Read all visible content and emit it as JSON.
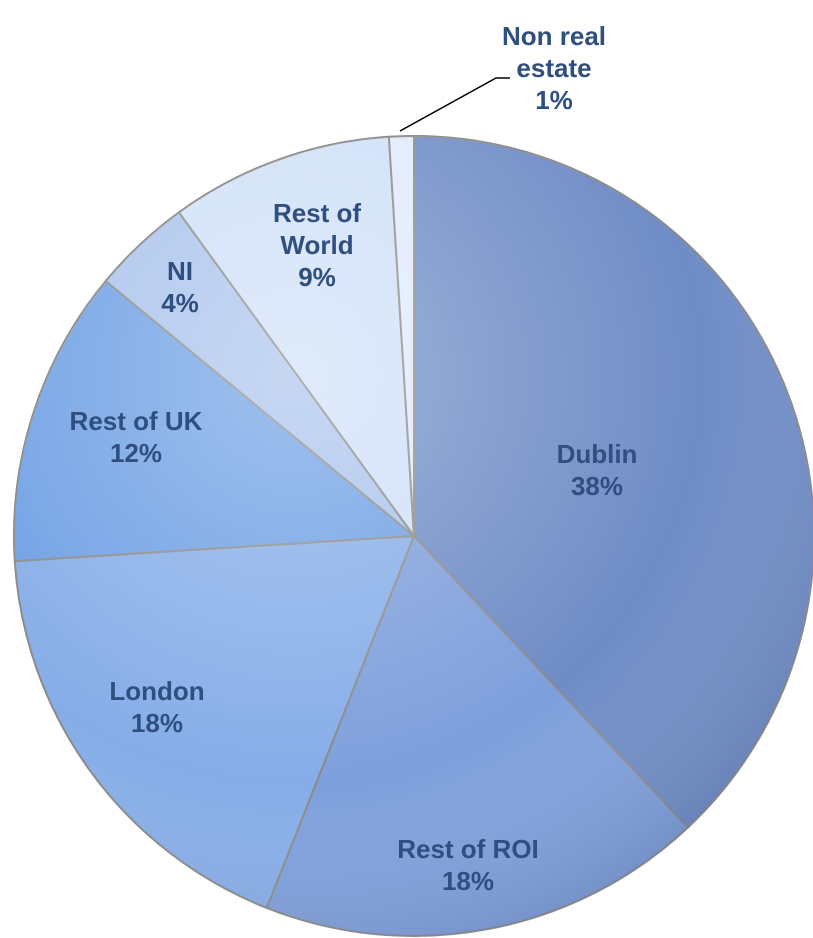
{
  "chart_data": {
    "type": "pie",
    "categories": [
      "Dublin",
      "Rest of ROI",
      "London",
      "Rest of UK",
      "NI",
      "Rest of World",
      "Non real estate"
    ],
    "values": [
      38,
      18,
      18,
      12,
      4,
      9,
      1
    ],
    "value_labels": [
      "38%",
      "18%",
      "18%",
      "12%",
      "4%",
      "9%",
      "1%"
    ],
    "colors": [
      "#6f8cc6",
      "#7e9fdc",
      "#86ade8",
      "#6d9fe4",
      "#a9c2ec",
      "#cfe0f8",
      "#dfeafb"
    ]
  }
}
